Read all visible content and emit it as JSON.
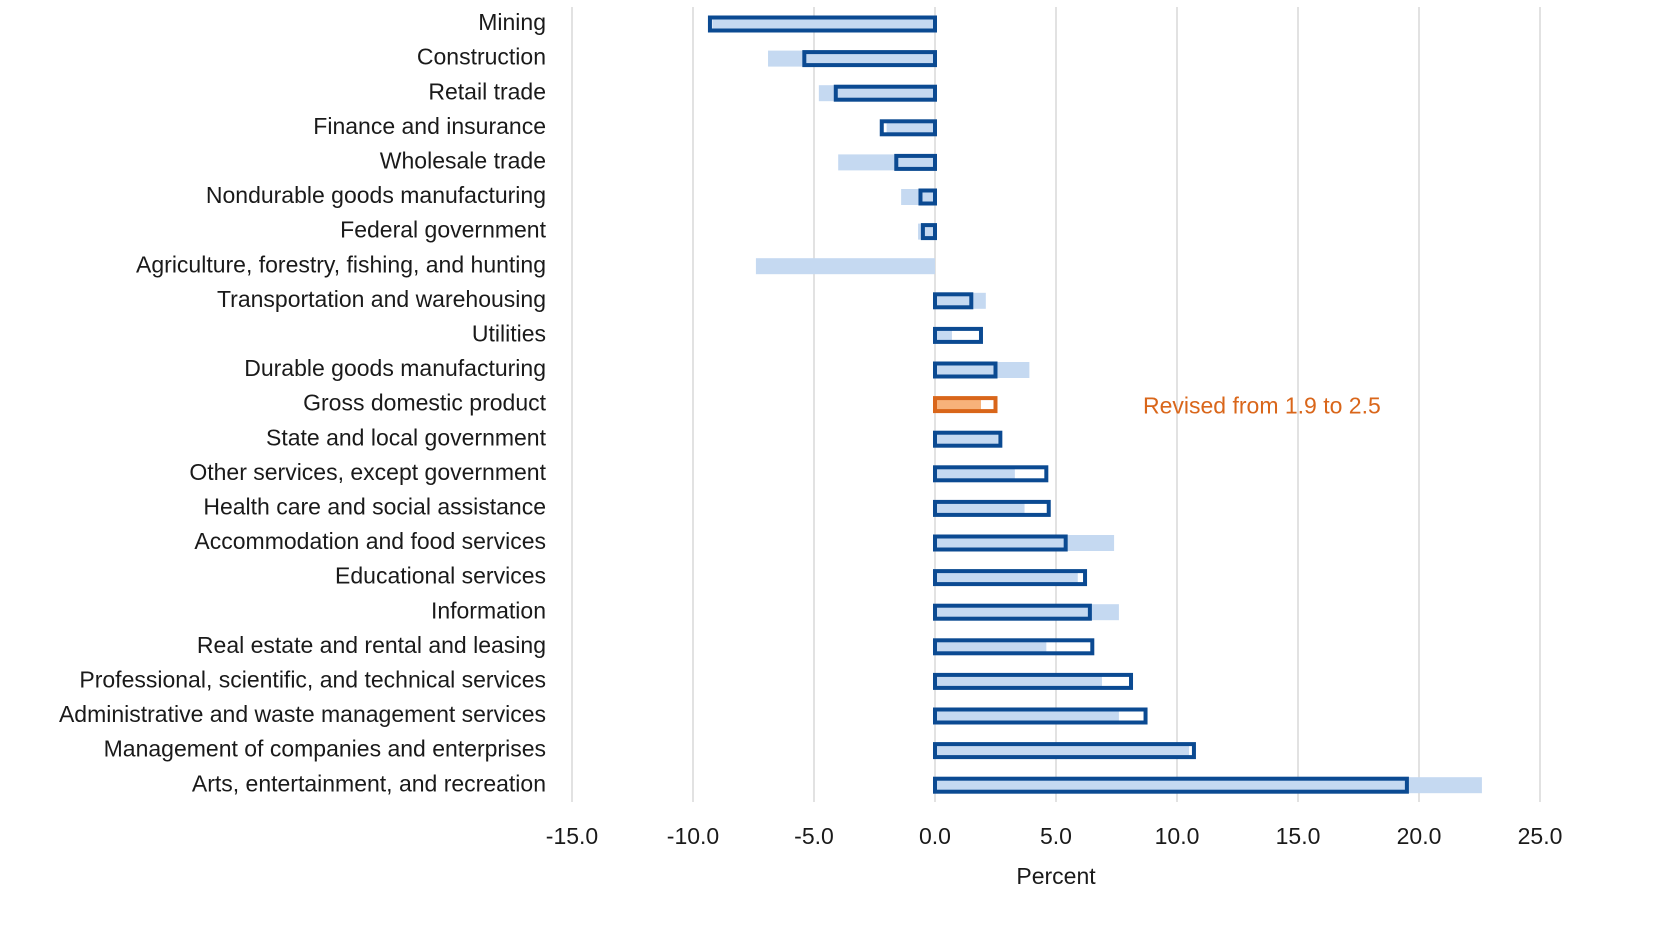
{
  "chart_data": {
    "type": "bar",
    "orientation": "horizontal",
    "x_label": "Percent",
    "categories": [
      "Mining",
      "Construction",
      "Retail trade",
      "Finance and insurance",
      "Wholesale trade",
      "Nondurable goods manufacturing",
      "Federal government",
      "Agriculture, forestry, fishing, and hunting",
      "Transportation and warehousing",
      "Utilities",
      "Durable goods manufacturing",
      "Gross domestic product",
      "State and local government",
      "Other services, except government",
      "Health care and social assistance",
      "Accommodation and food services",
      "Educational services",
      "Information",
      "Real estate and rental and leasing",
      "Professional, scientific, and technical services",
      "Administrative and waste management services",
      "Management of companies and enterprises",
      "Arts, entertainment, and recreation"
    ],
    "series": [
      {
        "style": "fill",
        "color": "#c5d9f1",
        "values": [
          -9.2,
          -6.9,
          -4.8,
          -2.0,
          -4.0,
          -1.4,
          -0.7,
          -7.4,
          2.1,
          0.7,
          3.9,
          1.9,
          2.6,
          3.3,
          3.7,
          7.4,
          5.9,
          7.6,
          4.6,
          6.9,
          7.6,
          10.5,
          22.6
        ]
      },
      {
        "style": "outline",
        "color": "#0b4a92",
        "values": [
          -9.3,
          -5.4,
          -4.1,
          -2.2,
          -1.6,
          -0.6,
          -0.5,
          null,
          1.5,
          1.9,
          2.5,
          2.5,
          2.7,
          4.6,
          4.7,
          5.4,
          6.2,
          6.4,
          6.5,
          8.1,
          8.7,
          10.7,
          19.5
        ]
      }
    ],
    "annotation": {
      "text": "Revised from 1.9 to 2.5",
      "category": "Gross domestic product",
      "color": "#d9661a",
      "fill_color": "#f7b27a"
    },
    "xlim": [
      -15,
      25
    ],
    "xticks": [
      {
        "value": -15,
        "label": "-15.0"
      },
      {
        "value": -10,
        "label": "-10.0"
      },
      {
        "value": -5,
        "label": "-5.0"
      },
      {
        "value": 0,
        "label": "0.0"
      },
      {
        "value": 5,
        "label": "5.0"
      },
      {
        "value": 10,
        "label": "10.0"
      },
      {
        "value": 15,
        "label": "15.0"
      },
      {
        "value": 20,
        "label": "20.0"
      },
      {
        "value": 25,
        "label": "25.0"
      }
    ],
    "grid": true
  }
}
